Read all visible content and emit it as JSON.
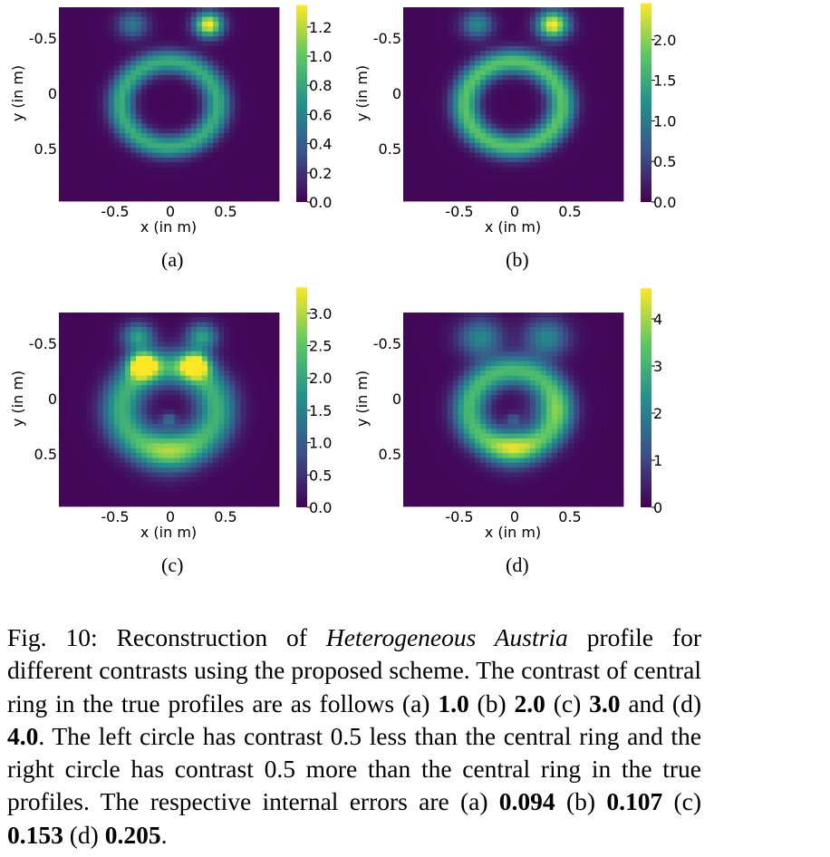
{
  "figure": {
    "panels": [
      {
        "label": "(a)",
        "cbar_ticks": [
          "0.0",
          "0.2",
          "0.4",
          "0.6",
          "0.8",
          "1.0",
          "1.2"
        ],
        "cbar_max": 1.35
      },
      {
        "label": "(b)",
        "cbar_ticks": [
          "0.0",
          "0.5",
          "1.0",
          "1.5",
          "2.0"
        ],
        "cbar_max": 2.45
      },
      {
        "label": "(c)",
        "cbar_ticks": [
          "0.0",
          "0.5",
          "1.0",
          "1.5",
          "2.0",
          "2.5",
          "3.0"
        ],
        "cbar_max": 3.4
      },
      {
        "label": "(d)",
        "cbar_ticks": [
          "0",
          "1",
          "2",
          "3",
          "4"
        ],
        "cbar_max": 4.65
      }
    ],
    "xlabel": "x (in m)",
    "ylabel": "y (in m)",
    "x_ticks": [
      "-0.5",
      "0",
      "0.5"
    ],
    "y_ticks": [
      "-0.5",
      "0",
      "0.5"
    ],
    "colormap": [
      "#440154",
      "#3b528b",
      "#21918c",
      "#5ec962",
      "#fde725"
    ]
  },
  "caption": {
    "p1": "Fig. 10: Reconstruction of ",
    "name": "Heterogeneous Austria",
    "p2": " profile for different contrasts using the proposed scheme. The contrast of central ring in the true profiles are as follows (a) ",
    "a_val": "1.0",
    "p3": " (b) ",
    "b_val": "2.0",
    "p4": " (c) ",
    "c_val": "3.0",
    "p5": " and (d) ",
    "d_val": "4.0",
    "p6": ". The left circle has contrast 0.5 less than the central ring and the right circle has contrast 0.5 more than the central ring in the true profiles. The respective internal errors are (a) ",
    "ea": "0.094",
    "p7": " (b) ",
    "eb": "0.107",
    "p8": " (c) ",
    "ec": "0.153",
    "p9": " (d) ",
    "ed": "0.205",
    "p10": "."
  }
}
